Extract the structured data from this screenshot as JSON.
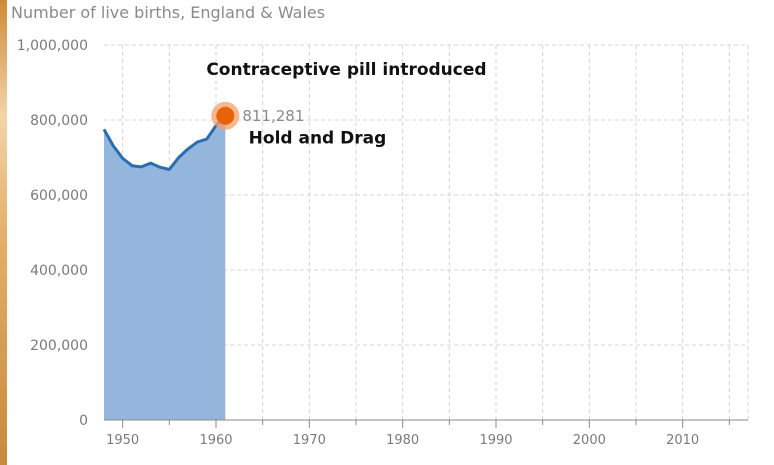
{
  "colors": {
    "line": "#2c6db2",
    "area": "#94b6dc",
    "handle": "#e8620a",
    "handle_halo": "#f5a06a",
    "grid": "#d4d4d4",
    "axis": "#8a8a8a"
  },
  "chart_data": {
    "type": "area",
    "title": "Number of live births, England & Wales",
    "xlim": [
      1948,
      2017
    ],
    "ylim": [
      0,
      1000000
    ],
    "x_ticks": [
      1950,
      1960,
      1970,
      1980,
      1990,
      2000,
      2010
    ],
    "y_ticks": [
      0,
      200000,
      400000,
      600000,
      800000,
      1000000
    ],
    "y_tick_labels": [
      "0",
      "200,000",
      "400,000",
      "600,000",
      "800,000",
      "1,000,000"
    ],
    "grid": true,
    "series": [
      {
        "x": [
          1948,
          1949,
          1950,
          1951,
          1952,
          1953,
          1954,
          1955,
          1956,
          1957,
          1958,
          1959,
          1960,
          1961
        ],
        "values": [
          775000,
          731000,
          698000,
          678000,
          675000,
          685000,
          674000,
          668000,
          700000,
          723000,
          741000,
          749000,
          785000,
          811281
        ]
      }
    ],
    "handle": {
      "x": 1961,
      "y": 811281,
      "label": "811,281"
    },
    "annotations": [
      {
        "text": "Contraceptive pill introduced",
        "x": 1961,
        "y": 920000
      },
      {
        "text": "Hold and Drag",
        "x": 1963.5,
        "y": 737000
      }
    ]
  }
}
